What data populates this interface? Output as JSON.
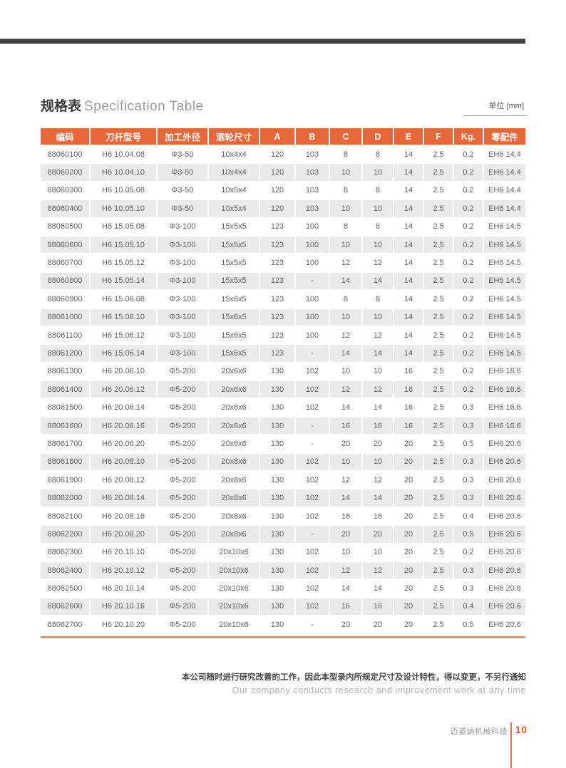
{
  "header": {
    "title_zh": "规格表",
    "title_en": "Specification Table",
    "unit_label": "单位 [mm]"
  },
  "table": {
    "columns": [
      "编码",
      "刀杆型号",
      "加工外径",
      "滚轮尺寸",
      "A",
      "B",
      "C",
      "D",
      "E",
      "F",
      "Kg.",
      "零配件"
    ],
    "rows": [
      [
        "88060100",
        "H6 10.04.08",
        "Φ3-50",
        "10x4x4",
        "120",
        "103",
        "8",
        "8",
        "14",
        "2.5",
        "0.2",
        "EH6 14.4"
      ],
      [
        "88060200",
        "H6 10.04.10",
        "Φ3-50",
        "10x4x4",
        "120",
        "103",
        "10",
        "10",
        "14",
        "2.5",
        "0.2",
        "EH6 14.4"
      ],
      [
        "88060300",
        "H6 10.05.08",
        "Φ3-50",
        "10x5x4",
        "120",
        "103",
        "8",
        "8",
        "14",
        "2.5",
        "0.2",
        "EH6 14.4"
      ],
      [
        "88060400",
        "H6 10.05.10",
        "Φ3-50",
        "10x5x4",
        "120",
        "103",
        "10",
        "10",
        "14",
        "2.5",
        "0.2",
        "EH6 14.4"
      ],
      [
        "88060500",
        "H6 15.05.08",
        "Φ3-100",
        "15x5x5",
        "123",
        "100",
        "8",
        "8",
        "14",
        "2.5",
        "0.2",
        "EH6 14.5"
      ],
      [
        "88060600",
        "H6 15.05.10",
        "Φ3-100",
        "15x5x5",
        "123",
        "100",
        "10",
        "10",
        "14",
        "2.5",
        "0.2",
        "EH6 14.5"
      ],
      [
        "88060700",
        "H6 15.05.12",
        "Φ3-100",
        "15x5x5",
        "123",
        "100",
        "12",
        "12",
        "14",
        "2.5",
        "0.2",
        "EH6 14.5"
      ],
      [
        "88060800",
        "H6 15.05.14",
        "Φ3-100",
        "15x5x5",
        "123",
        "-",
        "14",
        "14",
        "14",
        "2.5",
        "0.2",
        "EH6 14.5"
      ],
      [
        "88060900",
        "H6 15.06.08",
        "Φ3-100",
        "15x6x5",
        "123",
        "100",
        "8",
        "8",
        "14",
        "2.5",
        "0.2",
        "EH6 14.5"
      ],
      [
        "88061000",
        "H6 15.06.10",
        "Φ3-100",
        "15x6x5",
        "123",
        "100",
        "10",
        "10",
        "14",
        "2.5",
        "0.2",
        "EH6 14.5"
      ],
      [
        "88061100",
        "H6 15.06.12",
        "Φ3-100",
        "15x6x5",
        "123",
        "100",
        "12",
        "12",
        "14",
        "2.5",
        "0.2",
        "EH6 14.5"
      ],
      [
        "88061200",
        "H6 15.06.14",
        "Φ3-100",
        "15x6x5",
        "123",
        "-",
        "14",
        "14",
        "14",
        "2.5",
        "0.2",
        "EH6 14.5"
      ],
      [
        "88061300",
        "H6 20.06.10",
        "Φ5-200",
        "20x6x6",
        "130",
        "102",
        "10",
        "10",
        "16",
        "2.5",
        "0.2",
        "EH6 16.6"
      ],
      [
        "88061400",
        "H6 20.06.12",
        "Φ5-200",
        "20x6x6",
        "130",
        "102",
        "12",
        "12",
        "16",
        "2.5",
        "0.2",
        "EH6 16.6"
      ],
      [
        "88061500",
        "H6 20.06.14",
        "Φ5-200",
        "20x6x6",
        "130",
        "102",
        "14",
        "14",
        "16",
        "2.5",
        "0.3",
        "EH6 16.6"
      ],
      [
        "88061600",
        "H6 20.06.16",
        "Φ5-200",
        "20x6x6",
        "130",
        "-",
        "16",
        "16",
        "16",
        "2.5",
        "0.3",
        "EH6 16.6"
      ],
      [
        "88061700",
        "H6 20.06.20",
        "Φ5-200",
        "20x6x6",
        "130",
        "-",
        "20",
        "20",
        "20",
        "2.5",
        "0.5",
        "EH6 20.6"
      ],
      [
        "88061800",
        "H6 20.08.10",
        "Φ5-200",
        "20x8x6",
        "130",
        "102",
        "10",
        "10",
        "20",
        "2.5",
        "0.3",
        "EH6 20.6"
      ],
      [
        "88061900",
        "H6 20.08.12",
        "Φ5-200",
        "20x8x6",
        "130",
        "102",
        "12",
        "12",
        "20",
        "2.5",
        "0.3",
        "EH6 20.6"
      ],
      [
        "88062000",
        "H6 20.08.14",
        "Φ5-200",
        "20x8x6",
        "130",
        "102",
        "14",
        "14",
        "20",
        "2.5",
        "0.3",
        "EH6 20.6"
      ],
      [
        "88062100",
        "H6 20.08.16",
        "Φ5-200",
        "20x8x6",
        "130",
        "102",
        "16",
        "16",
        "20",
        "2.5",
        "0.4",
        "EH6 20.6"
      ],
      [
        "88062200",
        "H6 20.08.20",
        "Φ5-200",
        "20x8x6",
        "130",
        "-",
        "20",
        "20",
        "20",
        "2.5",
        "0.5",
        "EH6 20.6"
      ],
      [
        "88062300",
        "H6 20.10.10",
        "Φ5-200",
        "20x10x6",
        "130",
        "102",
        "10",
        "10",
        "20",
        "2.5",
        "0.2",
        "EH6 20.6"
      ],
      [
        "88062400",
        "H6 20.10.12",
        "Φ5-200",
        "20x10x6",
        "130",
        "102",
        "12",
        "12",
        "20",
        "2.5",
        "0.3",
        "EH6 20.6"
      ],
      [
        "88062500",
        "H6 20.10.14",
        "Φ5-200",
        "20x10x6",
        "130",
        "102",
        "14",
        "14",
        "20",
        "2.5",
        "0.3",
        "EH6 20.6"
      ],
      [
        "88062600",
        "H6 20.10.16",
        "Φ5-200",
        "20x10x6",
        "130",
        "102",
        "16",
        "16",
        "20",
        "2.5",
        "0.4",
        "EH6 20.6"
      ],
      [
        "88062700",
        "H6 20.10.20",
        "Φ5-200",
        "20x10x6",
        "130",
        "-",
        "20",
        "20",
        "20",
        "2.5",
        "0.5",
        "EH6 20.6"
      ]
    ]
  },
  "footer": {
    "note_zh": "本公司随时进行研究改善的工作，因此本型录内所规定尺寸及设计特性，得以变更，不另行通知",
    "note_en": "Our company conducts research and improvement work at any time",
    "company": "迈道纳机械科技",
    "page_number": "10"
  },
  "colors": {
    "accent_orange": "#e5673a",
    "rule_orange": "#ec8a60",
    "page_number_orange": "#e9582d",
    "top_bar_gray": "#454144",
    "row_stripe": "#eaeaea"
  }
}
